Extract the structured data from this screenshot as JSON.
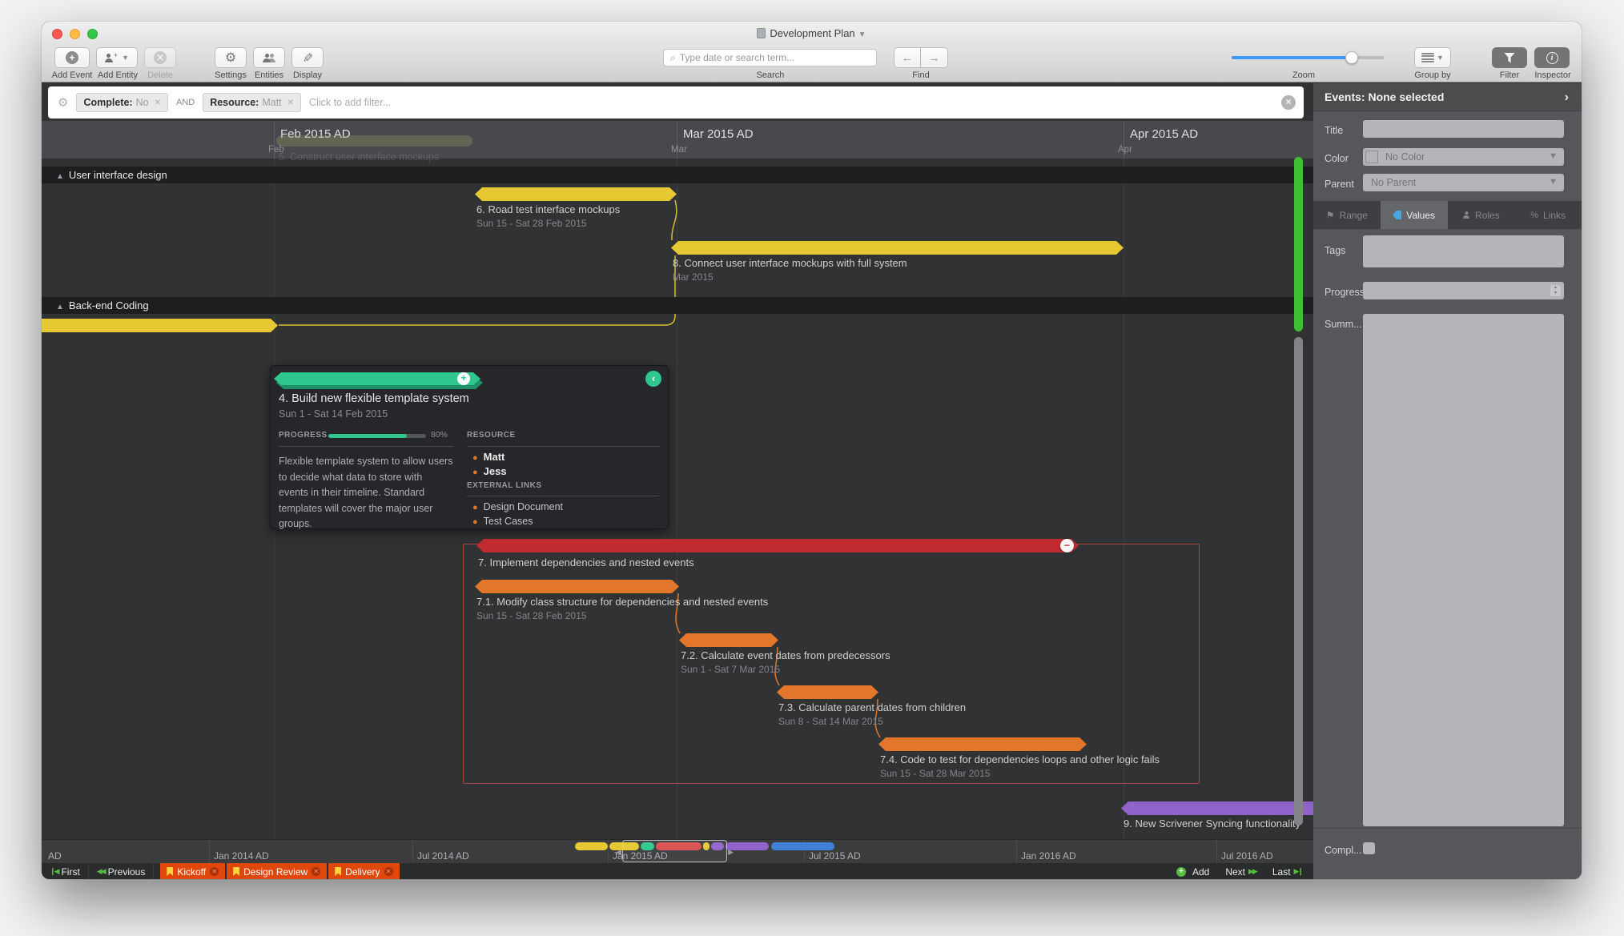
{
  "colors": {
    "yellow": "#e6c832",
    "teal": "#2fc78e",
    "red": "#c02a30",
    "orange": "#e2762b",
    "purple": "#8f63c9",
    "blue": "#4180d8",
    "green": "#55bd3f",
    "bookmark": "#e0470c",
    "slider": "#3b99fc",
    "tagblue": "#45a7e8"
  },
  "window": {
    "title": "Development Plan"
  },
  "toolbar": {
    "add_event": "Add Event",
    "add_entity": "Add Entity",
    "delete": "Delete",
    "settings": "Settings",
    "entities": "Entities",
    "display": "Display",
    "search_placeholder": "Type date or search term...",
    "search_label": "Search",
    "find_label": "Find",
    "zoom_label": "Zoom",
    "group_by": "Group by",
    "filter": "Filter",
    "inspector": "Inspector"
  },
  "filter_bar": {
    "items": [
      {
        "label": "Complete:",
        "value": "No"
      },
      {
        "label": "Resource:",
        "value": "Matt"
      }
    ],
    "conjunction": "AND",
    "placeholder": "Click to add filter..."
  },
  "timeline": {
    "months": [
      {
        "label": "Feb 2015 AD",
        "short": "Feb"
      },
      {
        "label": "Mar 2015 AD",
        "short": "Mar"
      },
      {
        "label": "Apr 2015 AD",
        "short": "Apr"
      }
    ],
    "sections": [
      {
        "label": "User interface design"
      },
      {
        "label": "Back-end Coding"
      }
    ],
    "ghost": {
      "title": "5. Construct user interface mockups"
    },
    "events": [
      {
        "title": "6. Road test interface mockups",
        "date": "Sun 15 - Sat 28 Feb 2015"
      },
      {
        "title": "8. Connect user interface mockups with full system",
        "date": "Mar 2015"
      },
      {
        "title": "7. Implement dependencies and nested events",
        "date": ""
      },
      {
        "title": "7.1. Modify class structure for dependencies and nested events",
        "date": "Sun 15 - Sat 28 Feb 2015"
      },
      {
        "title": "7.2. Calculate event dates from predecessors",
        "date": "Sun 1 - Sat 7 Mar 2015"
      },
      {
        "title": "7.3. Calculate parent dates from children",
        "date": "Sun 8 - Sat 14 Mar 2015"
      },
      {
        "title": "7.4. Code to test for dependencies loops and other logic fails",
        "date": "Sun 15 - Sat 28 Mar 2015"
      },
      {
        "title": "9. New Scrivener Syncing functionality",
        "date": ""
      }
    ]
  },
  "card": {
    "title": "4. Build new flexible template system",
    "date": "Sun 1 - Sat 14 Feb 2015",
    "progress_label": "PROGRESS",
    "progress_pct": "80%",
    "description": "Flexible template system to allow users to decide what data to store with events in their timeline. Standard templates will cover the major user groups.",
    "resource_label": "RESOURCE",
    "resources": [
      "Matt",
      "Jess"
    ],
    "links_label": "EXTERNAL LINKS",
    "links": [
      "Design Document",
      "Test Cases"
    ]
  },
  "inspector": {
    "header": "Events: None selected",
    "title_label": "Title",
    "color_label": "Color",
    "color_value": "No Color",
    "parent_label": "Parent",
    "parent_value": "No Parent",
    "tabs": [
      {
        "label": "Range"
      },
      {
        "label": "Values"
      },
      {
        "label": "Roles"
      },
      {
        "label": "Links"
      }
    ],
    "tags_label": "Tags",
    "progress_label": "Progress",
    "summary_label": "Summ...",
    "complete_label": "Compl..."
  },
  "overview": {
    "labels": [
      "AD",
      "Jan 2014 AD",
      "Jul 2014 AD",
      "Jan 2015 AD",
      "Jul 2015 AD",
      "Jan 2016 AD",
      "Jul 2016 AD"
    ]
  },
  "bottom": {
    "first": "First",
    "previous": "Previous",
    "bookmarks": [
      "Kickoff",
      "Design Review",
      "Delivery"
    ],
    "add": "Add",
    "next": "Next",
    "last": "Last"
  }
}
